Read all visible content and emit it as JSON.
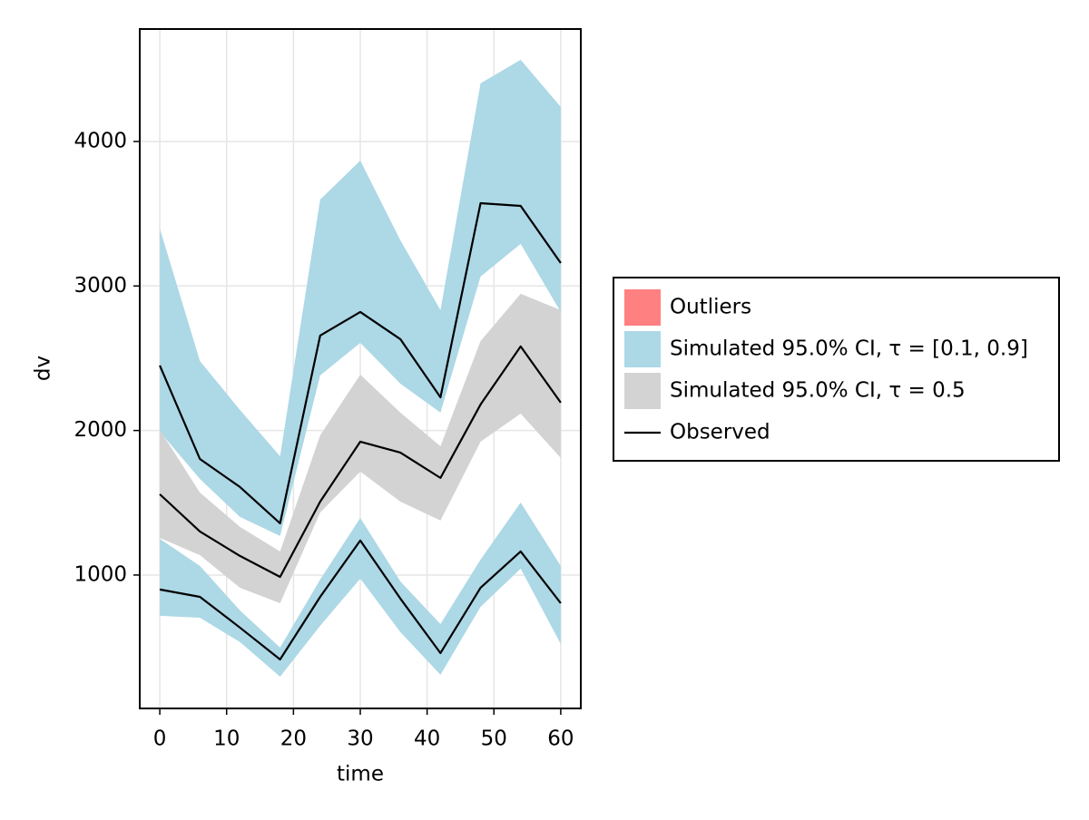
{
  "chart_data": {
    "type": "vpc",
    "x_label": "time",
    "y_label": "dv",
    "x": [
      0,
      6,
      12,
      18,
      24,
      30,
      36,
      42,
      48,
      54,
      60
    ],
    "xlim": [
      -3,
      63
    ],
    "ylim": [
      77,
      4778
    ],
    "xticks": [
      0,
      10,
      20,
      30,
      40,
      50,
      60
    ],
    "yticks": [
      1000,
      2000,
      3000,
      4000
    ],
    "grid": true,
    "legend_position": "right",
    "outliers": {
      "name": "Outliers",
      "color": "#ff8080",
      "values": []
    },
    "bands": [
      {
        "name": "Simulated 95.0% CI, τ = [0.1, 0.9]",
        "color": "#add8e6",
        "ranges": [
          {
            "lower": [
              1992,
              1665,
              1402,
              1270,
              2381,
              2607,
              2324,
              2124,
              3065,
              3291,
              2820
            ],
            "upper": [
              3398,
              2481,
              2142,
              1822,
              3598,
              3868,
              3316,
              2833,
              4402,
              4565,
              4239
            ]
          },
          {
            "lower": [
              718,
              705,
              536,
              297,
              649,
              975,
              605,
              310,
              780,
              1044,
              523
            ],
            "upper": [
              1251,
              1063,
              755,
              498,
              969,
              1395,
              956,
              661,
              1107,
              1502,
              1063
            ]
          }
        ]
      },
      {
        "name": "Simulated 95.0% CI, τ = 0.5",
        "color": "#d3d3d3",
        "ranges": [
          {
            "lower": [
              1257,
              1138,
              912,
              805,
              1433,
              1716,
              1508,
              1377,
              1923,
              2117,
              1810
            ],
            "upper": [
              2004,
              1571,
              1333,
              1163,
              1967,
              2387,
              2124,
              1891,
              2619,
              2946,
              2833
            ]
          }
        ]
      }
    ],
    "observed": {
      "name": "Observed",
      "color": "#000000",
      "lines": [
        [
          2450,
          1803,
          1609,
          1358,
          2657,
          2820,
          2632,
          2230,
          3573,
          3554,
          3159
        ],
        [
          1559,
          1301,
          1132,
          987,
          1508,
          1923,
          1847,
          1672,
          2180,
          2582,
          2193
        ],
        [
          900,
          849,
          636,
          416,
          849,
          1239,
          837,
          460,
          912,
          1163,
          805
        ]
      ]
    }
  }
}
